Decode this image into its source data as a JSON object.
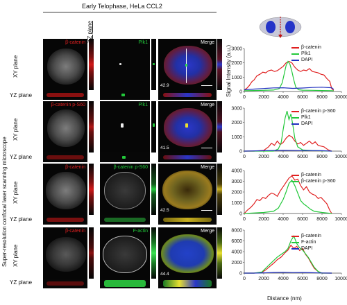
{
  "figure": {
    "title": "Early Telophase, HeLa CCL2",
    "xz_plane": "XZ plane",
    "side_label": "Super-resolution confocal laser scanning microscope",
    "xy_plane": "XY plane",
    "yz_plane": "YZ plane",
    "signal_label": "Signal Intensity (a.u.)",
    "distance_label": "Distance (nm)"
  },
  "rows": [
    {
      "c1": "β-catenin",
      "c2": "Plk1",
      "merge": "Merge",
      "value": "42.9",
      "c2_color": "#22c83a"
    },
    {
      "c1": "β-catenin p-S60",
      "c2": "Plk1",
      "merge": "Merge",
      "value": "41.5",
      "c2_color": "#22c83a"
    },
    {
      "c1": "β-catenin",
      "c2": "β-catenin p-S60",
      "merge": "Merge",
      "value": "42.5",
      "c2_color": "#22c83a"
    },
    {
      "c1": "β-catenin",
      "c2": "F-actin",
      "merge": "Merge",
      "value": "44.4",
      "c2_color": "#22c83a"
    }
  ],
  "colors": {
    "red": "#e02020",
    "green": "#22c83a",
    "blue": "#1f2fbf"
  },
  "chart_data": [
    {
      "type": "line",
      "ylim": [
        0,
        3000
      ],
      "yticks": [
        0,
        1000,
        2000,
        3000
      ],
      "xlim": [
        0,
        10000
      ],
      "xticks": [
        0,
        2000,
        4000,
        6000,
        8000,
        10000
      ],
      "ylabel": "Signal Intensity (a.u.)",
      "series": [
        {
          "name": "β-catenin",
          "color": "#e02020",
          "x": [
            0,
            300,
            500,
            800,
            1000,
            1300,
            1600,
            1900,
            2200,
            2500,
            2800,
            3100,
            3400,
            3700,
            4000,
            4300,
            4600,
            4900,
            5200,
            5500,
            5800,
            6100,
            6400,
            6700,
            7000,
            7300,
            7600,
            7900,
            8200,
            8500,
            8800,
            9000,
            9200
          ],
          "values": [
            100,
            250,
            400,
            700,
            800,
            1100,
            1200,
            1350,
            1300,
            1450,
            1500,
            1400,
            1450,
            1600,
            1750,
            2000,
            2100,
            2000,
            1700,
            1500,
            1400,
            1500,
            1450,
            1600,
            1400,
            1350,
            1300,
            1200,
            1150,
            900,
            700,
            200,
            80
          ]
        },
        {
          "name": "Plk1",
          "color": "#22c83a",
          "x": [
            0,
            1000,
            2000,
            3000,
            3600,
            3900,
            4100,
            4300,
            4500,
            4700,
            4900,
            5100,
            5300,
            5600,
            6000,
            7000,
            8000,
            9000,
            9200
          ],
          "values": [
            60,
            70,
            80,
            100,
            200,
            600,
            1200,
            1800,
            2100,
            1900,
            1400,
            800,
            300,
            120,
            90,
            80,
            70,
            60,
            50
          ]
        },
        {
          "name": "DAPI",
          "color": "#1f2fbf",
          "x": [
            0,
            1000,
            2000,
            3000,
            4000,
            5000,
            6000,
            7000,
            8000,
            9000,
            9200
          ],
          "values": [
            120,
            170,
            210,
            250,
            260,
            220,
            240,
            280,
            300,
            260,
            150
          ]
        }
      ]
    },
    {
      "type": "line",
      "ylim": [
        0,
        3000
      ],
      "yticks": [
        0,
        1000,
        2000,
        3000
      ],
      "xlim": [
        0,
        10000
      ],
      "xticks": [
        0,
        2000,
        4000,
        6000,
        8000,
        10000
      ],
      "series": [
        {
          "name": "β-catenin p-S60",
          "color": "#e02020",
          "x": [
            0,
            1000,
            2000,
            2500,
            2800,
            3100,
            3400,
            3700,
            4000,
            4300,
            4600,
            4900,
            5200,
            5500,
            5800,
            6100,
            6400,
            6700,
            7000,
            7300,
            7600,
            7900,
            8200,
            8600,
            9000
          ],
          "values": [
            0,
            0,
            50,
            300,
            550,
            400,
            700,
            450,
            600,
            900,
            1100,
            1000,
            700,
            500,
            600,
            400,
            550,
            700,
            500,
            650,
            400,
            350,
            300,
            100,
            0
          ]
        },
        {
          "name": "Plk1",
          "color": "#22c83a",
          "x": [
            0,
            3000,
            3500,
            3800,
            4000,
            4200,
            4400,
            4600,
            4800,
            5000,
            5200,
            5500,
            6000,
            7000,
            9000
          ],
          "values": [
            0,
            0,
            150,
            600,
            1500,
            2300,
            2800,
            2200,
            2600,
            1800,
            900,
            300,
            80,
            40,
            0
          ]
        },
        {
          "name": "DAPI",
          "color": "#1f2fbf",
          "x": [
            0,
            2000,
            4000,
            6000,
            8000,
            9000
          ],
          "values": [
            0,
            30,
            60,
            40,
            30,
            0
          ]
        }
      ]
    },
    {
      "type": "line",
      "ylim": [
        0,
        4000
      ],
      "yticks": [
        0,
        1000,
        2000,
        3000,
        4000
      ],
      "xlim": [
        0,
        10000
      ],
      "xticks": [
        0,
        2000,
        4000,
        6000,
        8000,
        10000
      ],
      "series": [
        {
          "name": "β-catenin",
          "color": "#e02020",
          "x": [
            0,
            300,
            700,
            1000,
            1300,
            1600,
            1900,
            2200,
            2500,
            2800,
            3100,
            3400,
            3700,
            4000,
            4300,
            4600,
            4900,
            5200,
            5500,
            5800,
            6100,
            6400,
            6700,
            7000,
            7300,
            7600,
            7900,
            8200,
            8500,
            8800,
            9000
          ],
          "values": [
            0,
            300,
            600,
            900,
            1300,
            1200,
            1500,
            1400,
            1700,
            1900,
            1800,
            1600,
            2100,
            2500,
            2900,
            3300,
            3500,
            3100,
            3200,
            2600,
            2200,
            2500,
            2000,
            1800,
            1700,
            1400,
            1500,
            1200,
            900,
            300,
            0
          ]
        },
        {
          "name": "β-catenin p-S60",
          "color": "#22c83a",
          "x": [
            0,
            2000,
            3000,
            3500,
            4000,
            4300,
            4600,
            4900,
            5200,
            5500,
            5800,
            6100,
            6400,
            6800,
            7200,
            8000,
            9000
          ],
          "values": [
            0,
            100,
            200,
            500,
            1300,
            2000,
            2800,
            3100,
            2600,
            1900,
            1200,
            900,
            700,
            400,
            200,
            100,
            0
          ]
        }
      ]
    },
    {
      "type": "line",
      "ylim": [
        0,
        8000
      ],
      "yticks": [
        0,
        2000,
        4000,
        6000,
        8000
      ],
      "xlim": [
        0,
        10000
      ],
      "xticks": [
        0,
        2000,
        4000,
        6000,
        8000,
        10000
      ],
      "xlabel": "Distance (nm)",
      "series": [
        {
          "name": "β-catenin",
          "color": "#e02020",
          "x": [
            0,
            1000,
            1800,
            2200,
            2600,
            3000,
            3400,
            3800,
            4200,
            4500,
            4800,
            5100,
            5400,
            5700,
            6000,
            6300,
            6600,
            6900,
            7200,
            7600,
            8000,
            9000
          ],
          "values": [
            0,
            0,
            100,
            600,
            1200,
            1800,
            2500,
            3000,
            3800,
            4300,
            5200,
            4600,
            5000,
            4200,
            4600,
            3500,
            2800,
            1800,
            900,
            300,
            0,
            0
          ]
        },
        {
          "name": "F-actin",
          "color": "#22c83a",
          "x": [
            0,
            1000,
            1800,
            2200,
            2600,
            3000,
            3400,
            3800,
            4200,
            4500,
            4800,
            5100,
            5400,
            5700,
            6000,
            6300,
            6600,
            6900,
            7200,
            7600,
            8000,
            9000
          ],
          "values": [
            0,
            0,
            200,
            900,
            1600,
            2300,
            3000,
            3500,
            4000,
            4600,
            6000,
            6900,
            5500,
            4700,
            4300,
            3600,
            2900,
            2000,
            1100,
            300,
            0,
            0
          ]
        },
        {
          "name": "DAPI",
          "color": "#1f2fbf",
          "x": [
            0,
            1000,
            2000,
            3000,
            4000,
            5000,
            6000,
            7000,
            8000,
            9000
          ],
          "values": [
            0,
            0,
            50,
            120,
            150,
            100,
            120,
            80,
            30,
            0
          ]
        }
      ]
    }
  ]
}
